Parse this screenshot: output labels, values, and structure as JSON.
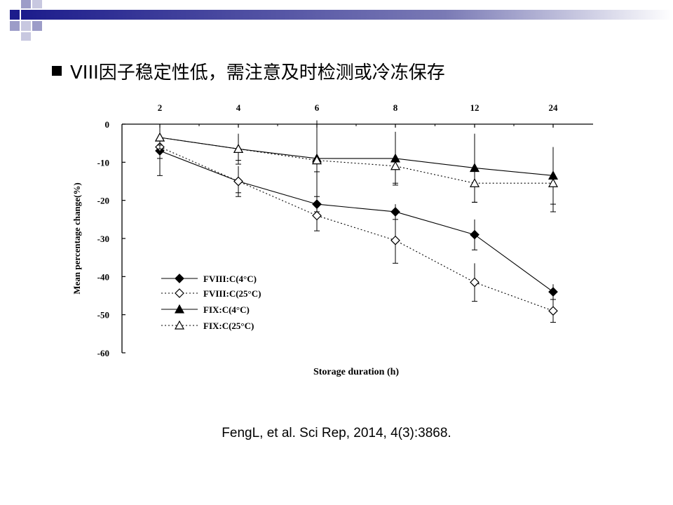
{
  "slide": {
    "title": "VIII因子稳定性低，需注意及时检测或冷冻保存",
    "citation": "FengL, et al. Sci Rep, 2014, 4(3):3868.",
    "accent_color": "#1c1c8c"
  },
  "chart_data": {
    "type": "line",
    "title": "",
    "xlabel": "Storage duration (h)",
    "ylabel": "Mean percentage change(%)",
    "categories": [
      "2",
      "4",
      "6",
      "8",
      "12",
      "24"
    ],
    "ylim": [
      -60,
      0
    ],
    "yticks": [
      "0",
      "-10",
      "-20",
      "-30",
      "-40",
      "-50",
      "-60"
    ],
    "grid": false,
    "legend_position": "lower-left",
    "series": [
      {
        "name": "FVIII:C(4°C)",
        "marker": "filled-diamond",
        "line": "solid",
        "values": [
          -7,
          -15,
          -21,
          -23,
          -29,
          -44
        ],
        "err": [
          6.5,
          4,
          2,
          2,
          4,
          2
        ]
      },
      {
        "name": "FVIII:C(25°C)",
        "marker": "open-diamond",
        "line": "dotted",
        "values": [
          -6,
          -15,
          -24,
          -30.5,
          -41.5,
          -49
        ],
        "err": [
          3,
          3,
          4,
          6,
          5,
          3
        ]
      },
      {
        "name": "FIX:C(4°C)",
        "marker": "filled-triangle",
        "line": "solid",
        "values": [
          -3.5,
          -6.5,
          -9,
          -9,
          -11.5,
          -13.5
        ],
        "err": [
          3,
          3,
          10,
          7,
          9,
          7.5
        ]
      },
      {
        "name": "FIX:C(25°C)",
        "marker": "open-triangle",
        "line": "dotted",
        "values": [
          -3.5,
          -6.5,
          -9.5,
          -11,
          -15.5,
          -15.5
        ],
        "err": [
          2,
          4,
          3,
          4.5,
          5,
          7.5
        ]
      }
    ]
  }
}
